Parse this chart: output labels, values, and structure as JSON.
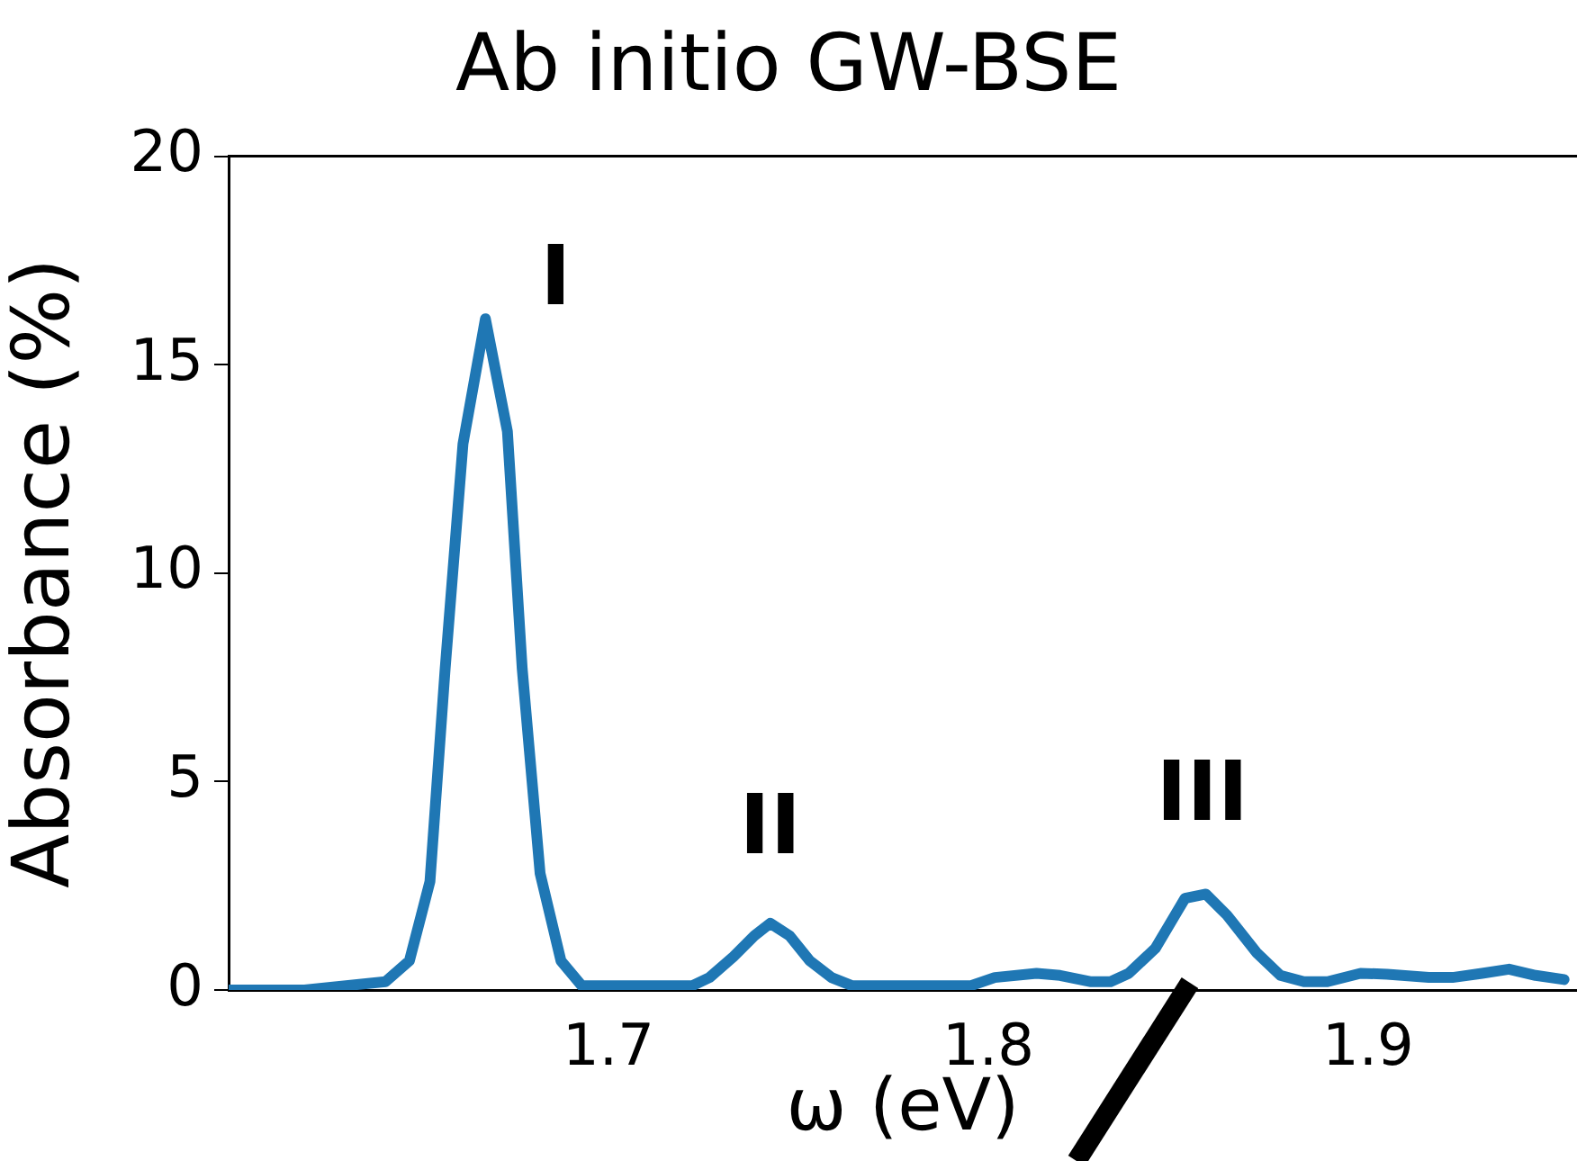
{
  "chart_data": {
    "type": "line",
    "title": "Ab initio GW-BSE",
    "xlabel": "ω (eV)",
    "ylabel": "Absorbance (%)",
    "xlim": [
      1.6,
      1.955
    ],
    "xticks": [
      1.7,
      1.8,
      1.9
    ],
    "ylim": [
      0,
      20
    ],
    "yticks": [
      0,
      5,
      10,
      15,
      20
    ],
    "grid": false,
    "legend": false,
    "marker": "none",
    "line_style": "solid",
    "series": [
      {
        "color": "#1f77b4",
        "x": [
          1.6,
          1.62,
          1.6413,
          1.6476,
          1.653,
          1.657,
          1.6617,
          1.6676,
          1.6734,
          1.6773,
          1.682,
          1.6875,
          1.693,
          1.722,
          1.7266,
          1.7329,
          1.7384,
          1.7426,
          1.7477,
          1.753,
          1.7587,
          1.7642,
          1.7953,
          1.8017,
          1.8127,
          1.8189,
          1.8268,
          1.8322,
          1.837,
          1.844,
          1.8518,
          1.8573,
          1.8628,
          1.8706,
          1.8769,
          1.8831,
          1.8893,
          1.898,
          1.905,
          1.916,
          1.9222,
          1.93,
          1.9371,
          1.9441,
          1.9516
        ],
        "values": [
          0,
          0,
          0.2,
          0.7,
          2.6,
          7.7,
          13.1,
          16.1,
          13.4,
          7.7,
          2.8,
          0.7,
          0.1,
          0.1,
          0.3,
          0.8,
          1.3,
          1.6,
          1.3,
          0.7,
          0.3,
          0.1,
          0.1,
          0.3,
          0.4,
          0.35,
          0.2,
          0.2,
          0.4,
          1.0,
          2.2,
          2.3,
          1.8,
          0.9,
          0.35,
          0.2,
          0.2,
          0.4,
          0.38,
          0.3,
          0.3,
          0.4,
          0.5,
          0.35,
          0.25
        ]
      }
    ],
    "annotations": [
      {
        "text": "I",
        "x": 1.6676,
        "y": 16.1
      },
      {
        "text": "II",
        "x": 1.7426,
        "y": 1.6
      },
      {
        "text": "III",
        "x": 1.8573,
        "y": 2.3
      }
    ]
  }
}
